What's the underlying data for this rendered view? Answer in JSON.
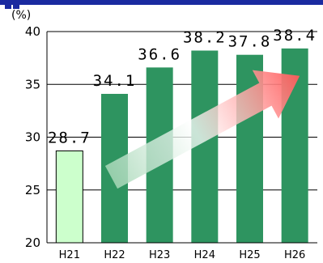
{
  "chart_data": {
    "type": "bar",
    "ylabel": "(%)",
    "ylim": [
      20,
      40
    ],
    "yticks": [
      20,
      25,
      30,
      35,
      40
    ],
    "grid": "horizontal",
    "categories": [
      "H21",
      "H22",
      "H23",
      "H24",
      "H25",
      "H26"
    ],
    "values": [
      28.7,
      34.1,
      36.6,
      38.2,
      37.8,
      38.4
    ],
    "value_labels": [
      "28.7",
      "34.1",
      "36.6",
      "38.2",
      "37.8",
      "38.4"
    ],
    "colors": {
      "first_bar_fill": "#ccffcc",
      "first_bar_stroke": "#000000",
      "bar_fill": "#2e9460",
      "arrow_start": "#a8d8b8",
      "arrow_end": "#ff5a5a"
    },
    "annotation": "upward-trend-arrow"
  }
}
